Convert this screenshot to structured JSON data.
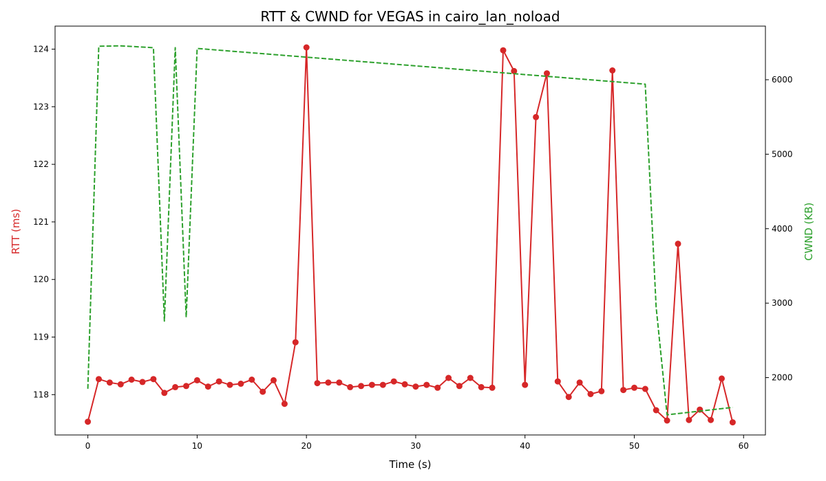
{
  "chart_data": {
    "type": "line",
    "title": "RTT & CWND for VEGAS in cairo_lan_noload",
    "xlabel": "Time (s)",
    "ylabel_left": "RTT (ms)",
    "ylabel_right": "CWND (KB)",
    "xlim": [
      -3,
      62
    ],
    "ylim_left": [
      117.3,
      124.4
    ],
    "ylim_right": [
      1230,
      6720
    ],
    "x_ticks": [
      0,
      10,
      20,
      30,
      40,
      50,
      60
    ],
    "y_left_ticks": [
      118,
      119,
      120,
      121,
      122,
      123,
      124
    ],
    "y_right_ticks": [
      2000,
      3000,
      4000,
      5000,
      6000
    ],
    "grid": false,
    "colors": {
      "rtt": "#d62728",
      "cwnd": "#2ca02c"
    },
    "series": [
      {
        "axis": "left",
        "style": "solid-markers",
        "x": [
          0,
          1,
          2,
          3,
          4,
          5,
          6,
          7,
          8,
          9,
          10,
          11,
          12,
          13,
          14,
          15,
          16,
          17,
          18,
          19,
          20,
          21,
          22,
          23,
          24,
          25,
          26,
          27,
          28,
          29,
          30,
          31,
          32,
          33,
          34,
          35,
          36,
          37,
          38,
          39,
          40,
          41,
          42,
          43,
          44,
          45,
          46,
          47,
          48,
          49,
          50,
          51,
          52,
          53,
          54,
          55,
          56,
          57,
          58,
          59
        ],
        "values": [
          117.53,
          118.27,
          118.21,
          118.18,
          118.26,
          118.22,
          118.27,
          118.03,
          118.13,
          118.15,
          118.25,
          118.14,
          118.23,
          118.17,
          118.19,
          118.26,
          118.05,
          118.25,
          117.84,
          118.91,
          124.03,
          118.2,
          118.21,
          118.21,
          118.13,
          118.15,
          118.17,
          118.17,
          118.23,
          118.18,
          118.14,
          118.17,
          118.12,
          118.29,
          118.15,
          118.29,
          118.13,
          118.12,
          123.98,
          123.62,
          118.17,
          122.82,
          123.58,
          118.23,
          117.96,
          118.21,
          118.01,
          118.06,
          123.63,
          118.08,
          118.12,
          118.1,
          117.73,
          117.55,
          120.62,
          117.56,
          117.74,
          117.56,
          118.28,
          117.52
        ]
      },
      {
        "axis": "right",
        "style": "dashed",
        "x": [
          0,
          1,
          3,
          6,
          7,
          8,
          9,
          10,
          51,
          52,
          53,
          59
        ],
        "values": [
          1850,
          6450,
          6455,
          6430,
          2760,
          6430,
          2810,
          6420,
          5940,
          2950,
          1500,
          1600
        ]
      }
    ]
  }
}
